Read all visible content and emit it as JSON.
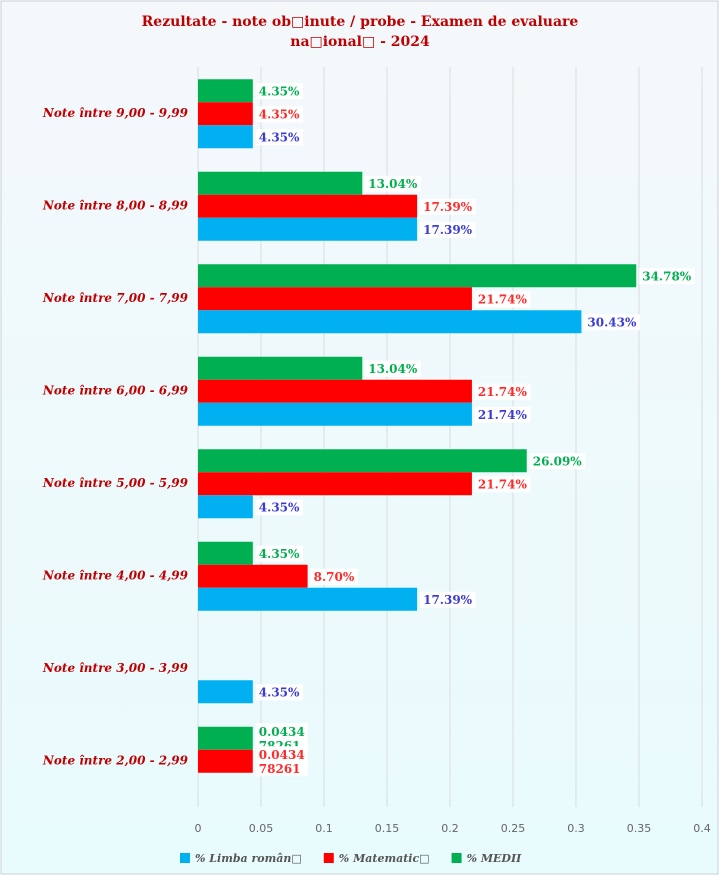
{
  "chart_data": {
    "type": "hbar",
    "title": "Rezultate - note ob□inute / probe - Examen de evaluare na□ional□ - 2024",
    "categories": [
      "Note între 9,00 - 9,99",
      "Note între 8,00 - 8,99",
      "Note între 7,00 - 7,99",
      "Note între 6,00 - 6,99",
      "Note între 5,00 - 5,99",
      "Note între 4,00 - 4,99",
      "Note între 3,00 - 3,99",
      "Note între 2,00 - 2,99"
    ],
    "series": [
      {
        "name": "% Limba român□",
        "color": "#00b0f0",
        "label_color": "#3b3bd6",
        "values": [
          0.0435,
          0.1739,
          0.3043,
          0.2174,
          0.0435,
          0.1739,
          0.0435,
          null
        ],
        "value_labels": [
          "4.35%",
          "17.39%",
          "30.43%",
          "21.74%",
          "4.35%",
          "17.39%",
          "4.35%",
          null
        ]
      },
      {
        "name": "% Matematic□",
        "color": "#ff0000",
        "label_color": "#ff2a2a",
        "values": [
          0.0435,
          0.1739,
          0.2174,
          0.2174,
          0.2174,
          0.087,
          null,
          0.043478261
        ],
        "value_labels": [
          "4.35%",
          "17.39%",
          "21.74%",
          "21.74%",
          "21.74%",
          "8.70%",
          null,
          "0.043478261"
        ]
      },
      {
        "name": "% MEDII",
        "color": "#00b050",
        "label_color": "#00b050",
        "values": [
          0.0435,
          0.1304,
          0.3478,
          0.1304,
          0.2609,
          0.0435,
          null,
          0.043478261
        ],
        "value_labels": [
          "4.35%",
          "13.04%",
          "34.78%",
          "13.04%",
          "26.09%",
          "4.35%",
          null,
          "0.043478261"
        ]
      }
    ],
    "xlim": [
      0,
      0.4
    ],
    "xticks": [
      0,
      0.05,
      0.1,
      0.15,
      0.2,
      0.25,
      0.3,
      0.35,
      0.4
    ],
    "grid": true
  }
}
